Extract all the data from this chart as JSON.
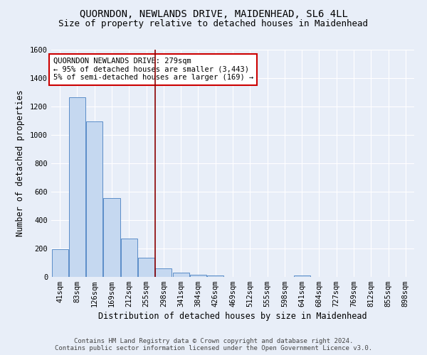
{
  "title": "QUORNDON, NEWLANDS DRIVE, MAIDENHEAD, SL6 4LL",
  "subtitle": "Size of property relative to detached houses in Maidenhead",
  "xlabel": "Distribution of detached houses by size in Maidenhead",
  "ylabel": "Number of detached properties",
  "footer_line1": "Contains HM Land Registry data © Crown copyright and database right 2024.",
  "footer_line2": "Contains public sector information licensed under the Open Government Licence v3.0.",
  "bin_labels": [
    "41sqm",
    "83sqm",
    "126sqm",
    "169sqm",
    "212sqm",
    "255sqm",
    "298sqm",
    "341sqm",
    "384sqm",
    "426sqm",
    "469sqm",
    "512sqm",
    "555sqm",
    "598sqm",
    "641sqm",
    "684sqm",
    "727sqm",
    "769sqm",
    "812sqm",
    "855sqm",
    "898sqm"
  ],
  "bar_values": [
    197,
    1265,
    1097,
    554,
    270,
    133,
    60,
    32,
    16,
    9,
    0,
    0,
    0,
    0,
    10,
    0,
    0,
    0,
    0,
    0,
    0
  ],
  "bar_color": "#c5d8f0",
  "bar_edge_color": "#5b8dc8",
  "background_color": "#e8eef8",
  "grid_color": "#ffffff",
  "ylim": [
    0,
    1600
  ],
  "yticks": [
    0,
    200,
    400,
    600,
    800,
    1000,
    1200,
    1400,
    1600
  ],
  "vline_x_index": 6,
  "vline_color": "#8b0000",
  "annotation_title": "QUORNDON NEWLANDS DRIVE: 279sqm",
  "annotation_line1": "← 95% of detached houses are smaller (3,443)",
  "annotation_line2": "5% of semi-detached houses are larger (169) →",
  "annotation_box_color": "#ffffff",
  "annotation_box_edge": "#cc0000",
  "title_fontsize": 10,
  "subtitle_fontsize": 9,
  "axis_label_fontsize": 8.5,
  "tick_fontsize": 7.5,
  "annotation_fontsize": 7.5,
  "footer_fontsize": 6.5
}
